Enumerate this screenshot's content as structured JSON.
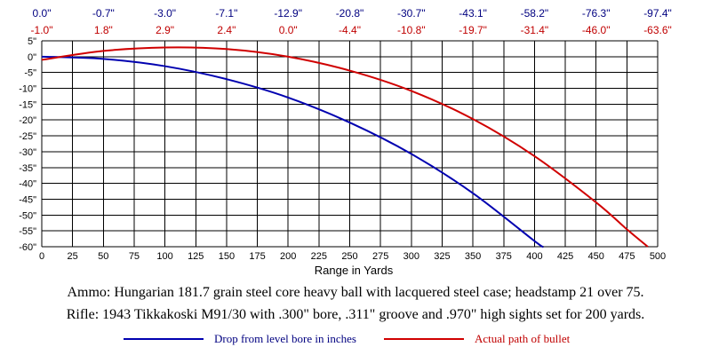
{
  "chart_data": {
    "type": "line",
    "xlabel": "Range in Yards",
    "ylabel": "",
    "xlim": [
      0,
      500
    ],
    "ylim": [
      -60,
      5
    ],
    "x_ticks": [
      "0",
      "25",
      "50",
      "75",
      "100",
      "125",
      "150",
      "175",
      "200",
      "225",
      "250",
      "275",
      "300",
      "325",
      "350",
      "375",
      "400",
      "425",
      "450",
      "475",
      "500"
    ],
    "y_ticks": [
      "5\"",
      "0\"",
      "-5\"",
      "-10\"",
      "-15\"",
      "-20\"",
      "-25\"",
      "-30\"",
      "-35\"",
      "-40\"",
      "-45\"",
      "-50\"",
      "-55\"",
      "-60\""
    ],
    "grid": true,
    "top_drop_labels": [
      "0.0\"",
      "-0.7\"",
      "-3.0\"",
      "-7.1\"",
      "-12.9\"",
      "-20.8\"",
      "-30.7\"",
      "-43.1\"",
      "-58.2\"",
      "-76.3\"",
      "-97.4\""
    ],
    "top_path_labels": [
      "-1.0\"",
      "1.8\"",
      "2.9\"",
      "2.4\"",
      "0.0\"",
      "-4.4\"",
      "-10.8\"",
      "-19.7\"",
      "-31.4\"",
      "-46.0\"",
      "-63.6\""
    ],
    "label_yards": [
      0,
      50,
      100,
      150,
      200,
      250,
      300,
      350,
      400,
      450,
      500
    ],
    "series": [
      {
        "name": "Drop from level bore in inches",
        "color": "#0000b0",
        "x": [
          0,
          50,
          100,
          150,
          200,
          250,
          300,
          350,
          400,
          407
        ],
        "y": [
          0.0,
          -0.7,
          -3.0,
          -7.1,
          -12.9,
          -20.8,
          -30.7,
          -43.1,
          -58.2,
          -60.0
        ]
      },
      {
        "name": "Actual path of bullet",
        "color": "#d00000",
        "x": [
          0,
          50,
          100,
          150,
          200,
          250,
          300,
          350,
          400,
          450,
          475,
          492
        ],
        "y": [
          -1.0,
          1.8,
          2.9,
          2.4,
          0.0,
          -4.4,
          -10.8,
          -19.7,
          -31.4,
          -46.0,
          -54.5,
          -60.0
        ]
      }
    ]
  },
  "captions": {
    "ammo": "Ammo:  Hungarian 181.7 grain steel core heavy ball with lacquered steel case; headstamp 21 over 75.",
    "rifle": "Rifle:  1943 Tikkakoski M91/30 with .300\" bore, .311\" groove and .970\" high sights set for 200 yards."
  },
  "legend": {
    "drop": "Drop from level bore in inches",
    "path": "Actual path of bullet"
  }
}
